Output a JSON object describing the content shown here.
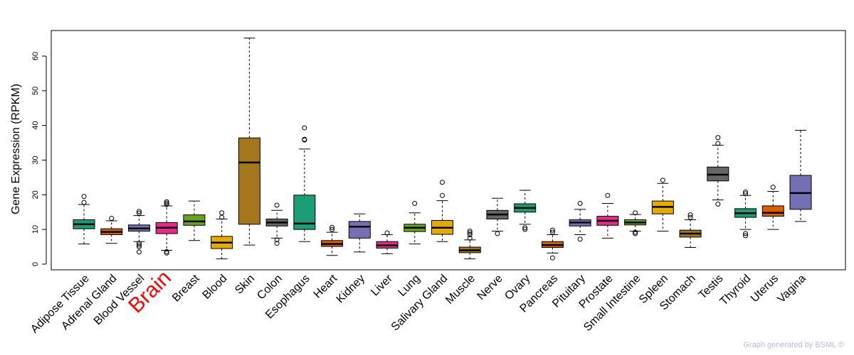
{
  "chart_data": {
    "type": "boxplot",
    "title": "",
    "xlabel": "",
    "ylabel": "Gene Expression (RPKM)",
    "ylim": [
      0,
      66
    ],
    "yticks": [
      0,
      10,
      20,
      30,
      40,
      50,
      60
    ],
    "highlight": {
      "category": "Brain",
      "color": "#ff0000"
    },
    "categories": [
      "Adipose Tissue",
      "Adrenal Gland",
      "Blood Vessel",
      "Brain",
      "Breast",
      "Blood",
      "Skin",
      "Colon",
      "Esophagus",
      "Heart",
      "Kidney",
      "Liver",
      "Lung",
      "Salivary Gland",
      "Muscle",
      "Nerve",
      "Ovary",
      "Pancreas",
      "Pituitary",
      "Prostate",
      "Small Intestine",
      "Spleen",
      "Stomach",
      "Testis",
      "Thyroid",
      "Uterus",
      "Vagina"
    ],
    "colors": [
      "#1b9e77",
      "#d95f02",
      "#7570b3",
      "#e7298a",
      "#66a61e",
      "#e6ab02",
      "#a6761d",
      "#666666",
      "#1b9e77",
      "#d95f02",
      "#7570b3",
      "#e7298a",
      "#66a61e",
      "#e6ab02",
      "#a6761d",
      "#666666",
      "#1b9e77",
      "#d95f02",
      "#7570b3",
      "#e7298a",
      "#66a61e",
      "#e6ab02",
      "#a6761d",
      "#666666",
      "#1b9e77",
      "#d95f02",
      "#7570b3"
    ],
    "boxes": [
      {
        "whisker_low": 5.8,
        "q1": 10.2,
        "median": 11.5,
        "q3": 12.8,
        "whisker_high": 17.2,
        "outliers": [
          17.8,
          19.5
        ]
      },
      {
        "whisker_low": 6.0,
        "q1": 8.5,
        "median": 9.3,
        "q3": 10.2,
        "whisker_high": 12.5,
        "outliers": [
          13.2
        ]
      },
      {
        "whisker_low": 6.5,
        "q1": 9.5,
        "median": 10.3,
        "q3": 11.3,
        "whisker_high": 14.0,
        "outliers": [
          3.5,
          5.0,
          5.5,
          6.0,
          14.7,
          15.2
        ]
      },
      {
        "whisker_low": 4.0,
        "q1": 8.8,
        "median": 10.5,
        "q3": 12.0,
        "whisker_high": 16.8,
        "outliers": [
          3.2,
          3.6,
          17.2,
          17.6,
          18.0
        ]
      },
      {
        "whisker_low": 6.8,
        "q1": 11.2,
        "median": 12.3,
        "q3": 14.2,
        "whisker_high": 18.2,
        "outliers": []
      },
      {
        "whisker_low": 1.5,
        "q1": 4.5,
        "median": 6.2,
        "q3": 8.0,
        "whisker_high": 13.0,
        "outliers": [
          13.5,
          14.8
        ]
      },
      {
        "whisker_low": 5.5,
        "q1": 11.5,
        "median": 29.3,
        "q3": 36.4,
        "whisker_high": 65.2,
        "outliers": []
      },
      {
        "whisker_low": 7.5,
        "q1": 11.0,
        "median": 12.0,
        "q3": 13.0,
        "whisker_high": 15.5,
        "outliers": [
          6.0,
          7.0,
          17.0
        ]
      },
      {
        "whisker_low": 6.5,
        "q1": 10.0,
        "median": 11.7,
        "q3": 19.9,
        "whisker_high": 33.2,
        "outliers": [
          35.8,
          36.0,
          39.3
        ]
      },
      {
        "whisker_low": 2.5,
        "q1": 5.1,
        "median": 5.8,
        "q3": 6.8,
        "whisker_high": 9.2,
        "outliers": [
          10.0,
          10.6
        ]
      },
      {
        "whisker_low": 3.5,
        "q1": 7.5,
        "median": 10.8,
        "q3": 12.3,
        "whisker_high": 14.5,
        "outliers": []
      },
      {
        "whisker_low": 3.0,
        "q1": 4.6,
        "median": 5.4,
        "q3": 6.5,
        "whisker_high": 8.5,
        "outliers": [
          9.0
        ]
      },
      {
        "whisker_low": 5.8,
        "q1": 9.4,
        "median": 10.5,
        "q3": 11.5,
        "whisker_high": 14.8,
        "outliers": [
          17.5
        ]
      },
      {
        "whisker_low": 6.5,
        "q1": 8.6,
        "median": 10.5,
        "q3": 12.6,
        "whisker_high": 18.3,
        "outliers": [
          19.8,
          23.6
        ]
      },
      {
        "whisker_low": 1.5,
        "q1": 3.3,
        "median": 4.0,
        "q3": 4.9,
        "whisker_high": 7.0,
        "outliers": [
          7.5,
          8.5,
          9.0,
          9.5
        ]
      },
      {
        "whisker_low": 9.5,
        "q1": 13.0,
        "median": 14.3,
        "q3": 15.5,
        "whisker_high": 19.0,
        "outliers": [
          8.8
        ]
      },
      {
        "whisker_low": 11.5,
        "q1": 15.0,
        "median": 16.2,
        "q3": 17.4,
        "whisker_high": 21.3,
        "outliers": [
          10.0,
          10.5
        ]
      },
      {
        "whisker_low": 3.2,
        "q1": 4.8,
        "median": 5.5,
        "q3": 6.5,
        "whisker_high": 8.5,
        "outliers": [
          1.8,
          9.2,
          9.8
        ]
      },
      {
        "whisker_low": 8.5,
        "q1": 11.0,
        "median": 12.0,
        "q3": 12.8,
        "whisker_high": 15.8,
        "outliers": [
          7.2,
          17.5
        ]
      },
      {
        "whisker_low": 7.5,
        "q1": 11.2,
        "median": 12.5,
        "q3": 13.8,
        "whisker_high": 17.5,
        "outliers": [
          19.8
        ]
      },
      {
        "whisker_low": 9.5,
        "q1": 11.3,
        "median": 12.0,
        "q3": 12.8,
        "whisker_high": 14.3,
        "outliers": [
          8.8,
          9.2,
          14.8
        ]
      },
      {
        "whisker_low": 9.5,
        "q1": 14.5,
        "median": 16.5,
        "q3": 18.2,
        "whisker_high": 23.3,
        "outliers": [
          24.2
        ]
      },
      {
        "whisker_low": 4.8,
        "q1": 7.8,
        "median": 8.8,
        "q3": 9.8,
        "whisker_high": 12.8,
        "outliers": [
          13.5,
          14.2
        ]
      },
      {
        "whisker_low": 18.5,
        "q1": 24.0,
        "median": 25.8,
        "q3": 28.0,
        "whisker_high": 34.3,
        "outliers": [
          17.3,
          34.8,
          36.5
        ]
      },
      {
        "whisker_low": 10.0,
        "q1": 13.5,
        "median": 14.7,
        "q3": 16.0,
        "whisker_high": 19.8,
        "outliers": [
          8.2,
          8.8,
          20.3,
          20.8
        ]
      },
      {
        "whisker_low": 10.0,
        "q1": 13.8,
        "median": 14.8,
        "q3": 16.8,
        "whisker_high": 21.0,
        "outliers": [
          22.2
        ]
      },
      {
        "whisker_low": 12.3,
        "q1": 15.8,
        "median": 20.5,
        "q3": 25.6,
        "whisker_high": 38.6,
        "outliers": []
      }
    ]
  },
  "credit": "Graph generated by BSML ©"
}
